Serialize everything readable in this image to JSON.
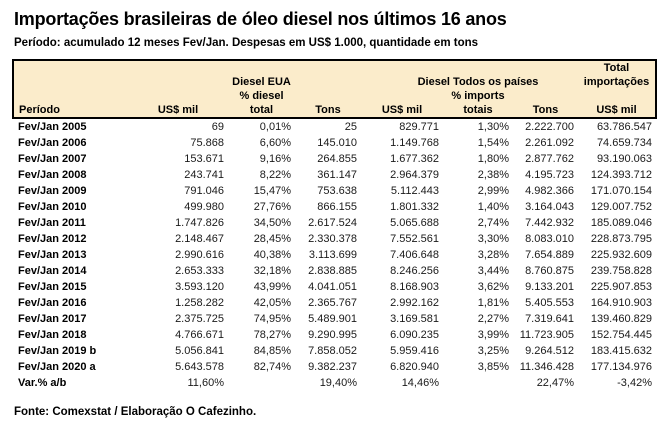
{
  "title": "Importações brasileiras de óleo diesel nos últimos 16 anos",
  "subtitle": "Período: acumulado 12 meses Fev/Jan. Despesas em US$ 1.000, quantidade em tons",
  "source": "Fonte: Comexstat / Elaboração O Cafezinho.",
  "colors": {
    "header_bg": "#FBECCB",
    "header_border": "#000000",
    "body_text": "#1a1a1a"
  },
  "table": {
    "header": {
      "line1_total": "Total",
      "group_eua": "Diesel EUA",
      "group_all": "Diesel Todos os países",
      "line2_importacoes": "importações",
      "sub_pct_diesel": "% diesel",
      "sub_pct_imports": "% imports",
      "cols": [
        "Período",
        "US$ mil",
        "total",
        "Tons",
        "US$ mil",
        "totais",
        "Tons",
        "US$ mil"
      ]
    }
  },
  "chart_data": {
    "type": "table",
    "title": "Importações brasileiras de óleo diesel nos últimos 16 anos",
    "subtitle": "Período: acumulado 12 meses Fev/Jan. Despesas em US$ 1.000, quantidade em tons",
    "source": "Fonte: Comexstat / Elaboração O Cafezinho.",
    "columns": [
      "Período",
      "Diesel EUA US$ mil",
      "Diesel EUA % diesel total",
      "Diesel EUA Tons",
      "Diesel Todos os países US$ mil",
      "Diesel Todos os países % imports totais",
      "Diesel Todos os países Tons",
      "Total importações US$ mil"
    ],
    "rows": [
      [
        "Fev/Jan 2005",
        "69",
        "0,01%",
        "25",
        "829.771",
        "1,30%",
        "2.222.700",
        "63.786.547"
      ],
      [
        "Fev/Jan 2006",
        "75.868",
        "6,60%",
        "145.010",
        "1.149.768",
        "1,54%",
        "2.261.092",
        "74.659.734"
      ],
      [
        "Fev/Jan 2007",
        "153.671",
        "9,16%",
        "264.855",
        "1.677.362",
        "1,80%",
        "2.877.762",
        "93.190.063"
      ],
      [
        "Fev/Jan 2008",
        "243.741",
        "8,22%",
        "361.147",
        "2.964.379",
        "2,38%",
        "4.195.723",
        "124.393.712"
      ],
      [
        "Fev/Jan 2009",
        "791.046",
        "15,47%",
        "753.638",
        "5.112.443",
        "2,99%",
        "4.982.366",
        "171.070.154"
      ],
      [
        "Fev/Jan 2010",
        "499.980",
        "27,76%",
        "866.155",
        "1.801.332",
        "1,40%",
        "3.164.043",
        "129.007.752"
      ],
      [
        "Fev/Jan 2011",
        "1.747.826",
        "34,50%",
        "2.617.524",
        "5.065.688",
        "2,74%",
        "7.442.932",
        "185.089.046"
      ],
      [
        "Fev/Jan 2012",
        "2.148.467",
        "28,45%",
        "2.330.378",
        "7.552.561",
        "3,30%",
        "8.083.010",
        "228.873.795"
      ],
      [
        "Fev/Jan 2013",
        "2.990.616",
        "40,38%",
        "3.113.699",
        "7.406.648",
        "3,28%",
        "7.654.889",
        "225.932.609"
      ],
      [
        "Fev/Jan 2014",
        "2.653.333",
        "32,18%",
        "2.838.885",
        "8.246.256",
        "3,44%",
        "8.760.875",
        "239.758.828"
      ],
      [
        "Fev/Jan 2015",
        "3.593.120",
        "43,99%",
        "4.041.051",
        "8.168.903",
        "3,62%",
        "9.133.201",
        "225.907.853"
      ],
      [
        "Fev/Jan 2016",
        "1.258.282",
        "42,05%",
        "2.365.767",
        "2.992.162",
        "1,81%",
        "5.405.553",
        "164.910.903"
      ],
      [
        "Fev/Jan 2017",
        "2.375.725",
        "74,95%",
        "5.489.901",
        "3.169.581",
        "2,27%",
        "7.319.641",
        "139.460.829"
      ],
      [
        "Fev/Jan 2018",
        "4.766.671",
        "78,27%",
        "9.290.995",
        "6.090.235",
        "3,99%",
        "11.723.905",
        "152.754.445"
      ],
      [
        "Fev/Jan 2019 b",
        "5.056.841",
        "84,85%",
        "7.858.052",
        "5.959.416",
        "3,25%",
        "9.264.512",
        "183.415.632"
      ],
      [
        "Fev/Jan 2020 a",
        "5.643.578",
        "82,74%",
        "9.382.237",
        "6.820.940",
        "3,85%",
        "11.346.428",
        "177.134.976"
      ],
      [
        "Var.% a/b",
        "11,60%",
        "",
        "19,40%",
        "14,46%",
        "",
        "22,47%",
        "-3,42%"
      ]
    ]
  }
}
